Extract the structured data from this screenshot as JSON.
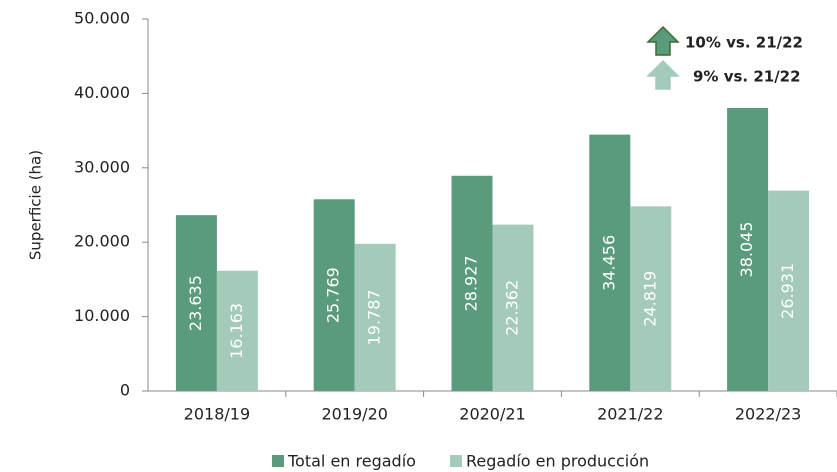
{
  "chart_data": {
    "type": "bar",
    "y_label": "Superficie (ha)",
    "categories": [
      "2018/19",
      "2019/20",
      "2020/21",
      "2021/22",
      "2022/23"
    ],
    "series": [
      {
        "name": "Total en regadío",
        "color": "#5b9b7d",
        "values": [
          23635,
          25769,
          28927,
          34456,
          38045
        ],
        "value_labels": [
          "23.635",
          "25.769",
          "28.927",
          "34.456",
          "38.045"
        ]
      },
      {
        "name": "Regadío en producción",
        "color": "#a4cab9",
        "values": [
          16163,
          19787,
          22362,
          24819,
          26931
        ],
        "value_labels": [
          "16.163",
          "19.787",
          "22.362",
          "24.819",
          "26.931"
        ]
      }
    ],
    "ylim": [
      0,
      50000
    ],
    "yticks": [
      0,
      {
        "value": 10000,
        "label": "10.000"
      },
      {
        "value": 20000,
        "label": "20.000"
      },
      {
        "value": 30000,
        "label": "30.000"
      },
      {
        "value": 40000,
        "label": "40.000"
      },
      {
        "value": 50000,
        "label": "50.000"
      }
    ],
    "annotations": [
      {
        "text": "10% vs. 21/22",
        "color": "#5b9b7d"
      },
      {
        "text": "9% vs. 21/22",
        "color": "#a4cab9"
      }
    ]
  }
}
